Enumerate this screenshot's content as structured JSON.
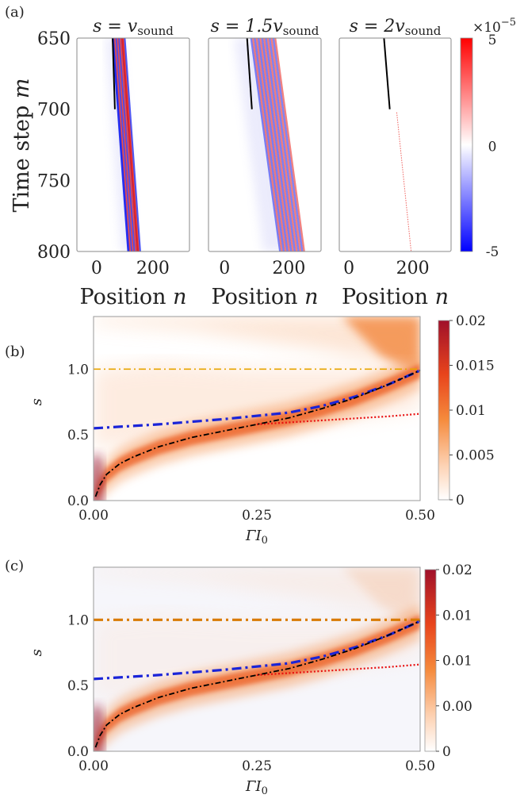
{
  "panels": {
    "a": "(a)",
    "b": "(b)",
    "c": "(c)"
  },
  "colors": {
    "positive": "#e8201b",
    "negative": "#1a24f0",
    "heat_low": "#fde8d8",
    "heat_mid": "#f47a20",
    "heat_high": "#a5102a",
    "sound_line": "#e8a500",
    "sound_line_c": "#d97a00",
    "upper_fit": "#1a24d8",
    "lower_fit": "#e81010",
    "black_fit": "#000000"
  },
  "chart_data": [
    {
      "type": "heatmap",
      "panel": "a",
      "subplots": [
        {
          "title": "s = v_sound",
          "title_main": "s = v",
          "title_sub": "sound",
          "xlabel": "Position n",
          "x_ticks": [
            "0",
            "200"
          ],
          "x_tick_values": [
            0,
            200
          ],
          "xlim": [
            -70,
            330
          ],
          "band": {
            "start_center": 80,
            "end_center": 135,
            "width": 40,
            "pattern": "alternating red/blue stripes"
          },
          "black_line": [
            [
              57,
              650
            ],
            [
              65,
              700
            ]
          ]
        },
        {
          "title": "s = 1.5v_sound",
          "title_main": "s = 1.5v",
          "title_sub": "sound",
          "xlabel": "Position n",
          "x_ticks": [
            "0",
            "200"
          ],
          "x_tick_values": [
            0,
            200
          ],
          "xlim": [
            -50,
            300
          ],
          "band": {
            "start_center": 120,
            "end_center": 210,
            "width": 75,
            "pattern": "alternating red/blue stripes"
          },
          "black_line": [
            [
              70,
              650
            ],
            [
              85,
              700
            ]
          ]
        },
        {
          "title": "s = 2v_sound",
          "title_main": "s = 2v",
          "title_sub": "sound",
          "xlabel": "Position n",
          "x_ticks": [
            "0",
            "200"
          ],
          "x_tick_values": [
            0,
            200
          ],
          "xlim": [
            -30,
            320
          ],
          "band": {
            "start_center": 135,
            "end_center": 195,
            "width": 3,
            "pattern": "faint red line"
          },
          "black_line": [
            [
              110,
              650
            ],
            [
              128,
              700
            ]
          ]
        }
      ],
      "ylabel": "Time step m",
      "y_ticks": [
        "650",
        "700",
        "750",
        "800"
      ],
      "y_tick_values": [
        650,
        700,
        750,
        800
      ],
      "ylim": [
        650,
        800
      ],
      "colorbar": {
        "ticks": [
          "5",
          "0",
          "-5"
        ],
        "tick_values": [
          5,
          0,
          -5
        ],
        "exponent_base": "×10",
        "exponent_power": "−5"
      }
    },
    {
      "type": "heatmap",
      "panel": "b",
      "xlabel": "ΓI",
      "xlabel_sub": "0",
      "ylabel": "s",
      "x_ticks": [
        "0.00",
        "0.25",
        "0.50"
      ],
      "x_tick_values": [
        0.0,
        0.25,
        0.5
      ],
      "y_ticks": [
        "0.0",
        "0.5",
        "1.0"
      ],
      "y_tick_values": [
        0.0,
        0.5,
        1.0
      ],
      "xlim": [
        0,
        0.5
      ],
      "ylim": [
        0,
        1.4
      ],
      "colorbar": {
        "ticks": [
          "0.02",
          "0.015",
          "0.01",
          "0.005",
          "0"
        ],
        "tick_values": [
          0.02,
          0.015,
          0.01,
          0.005,
          0
        ]
      },
      "lines": [
        {
          "style": "dashed-dotted",
          "color": "sound_line",
          "x": [
            0,
            0.5
          ],
          "y": [
            1.0,
            1.0
          ]
        },
        {
          "style": "dash-dot-thick",
          "color": "upper_fit",
          "x": [
            0,
            0.1,
            0.2,
            0.3,
            0.35,
            0.4,
            0.45,
            0.5
          ],
          "y": [
            0.55,
            0.58,
            0.62,
            0.67,
            0.72,
            0.79,
            0.88,
            0.99
          ]
        },
        {
          "style": "dotted",
          "color": "lower_fit",
          "x": [
            0.25,
            0.3,
            0.35,
            0.4,
            0.45,
            0.5
          ],
          "y": [
            0.58,
            0.595,
            0.61,
            0.625,
            0.64,
            0.66
          ]
        },
        {
          "style": "dash-dot",
          "color": "black_fit",
          "x": [
            0.003,
            0.01,
            0.02,
            0.04,
            0.06,
            0.1,
            0.15,
            0.2,
            0.25,
            0.3,
            0.35,
            0.4,
            0.45,
            0.5
          ],
          "y": [
            0.03,
            0.12,
            0.2,
            0.28,
            0.33,
            0.41,
            0.48,
            0.53,
            0.58,
            0.63,
            0.7,
            0.78,
            0.88,
            0.99
          ]
        }
      ]
    },
    {
      "type": "heatmap",
      "panel": "c",
      "xlabel": "ΓI",
      "xlabel_sub": "0",
      "ylabel": "s",
      "x_ticks": [
        "0.00",
        "0.25",
        "0.50"
      ],
      "x_tick_values": [
        0.0,
        0.25,
        0.5
      ],
      "y_ticks": [
        "0.0",
        "0.5",
        "1.0"
      ],
      "y_tick_values": [
        0.0,
        0.5,
        1.0
      ],
      "xlim": [
        0,
        0.5
      ],
      "ylim": [
        0,
        1.4
      ],
      "colorbar": {
        "ticks": [
          "0.02",
          "0.01",
          "0.01",
          "0.00",
          "0"
        ],
        "tick_values": [
          0.02,
          0.015,
          0.01,
          0.005,
          0
        ]
      },
      "lines": [
        {
          "style": "dash-dot-thick",
          "color": "sound_line_c",
          "x": [
            0,
            0.5
          ],
          "y": [
            1.0,
            1.0
          ]
        },
        {
          "style": "dash-dot-thick",
          "color": "upper_fit",
          "x": [
            0,
            0.1,
            0.2,
            0.3,
            0.35,
            0.4,
            0.45,
            0.5
          ],
          "y": [
            0.55,
            0.58,
            0.62,
            0.67,
            0.72,
            0.79,
            0.88,
            0.99
          ]
        },
        {
          "style": "dotted",
          "color": "lower_fit",
          "x": [
            0.25,
            0.3,
            0.35,
            0.4,
            0.45,
            0.5
          ],
          "y": [
            0.58,
            0.595,
            0.61,
            0.625,
            0.64,
            0.66
          ]
        },
        {
          "style": "dash-dot",
          "color": "black_fit",
          "x": [
            0.003,
            0.01,
            0.02,
            0.04,
            0.06,
            0.1,
            0.15,
            0.2,
            0.25,
            0.3,
            0.35,
            0.4,
            0.45,
            0.5
          ],
          "y": [
            0.03,
            0.12,
            0.2,
            0.28,
            0.33,
            0.41,
            0.48,
            0.53,
            0.58,
            0.63,
            0.7,
            0.78,
            0.88,
            0.99
          ]
        }
      ]
    }
  ]
}
